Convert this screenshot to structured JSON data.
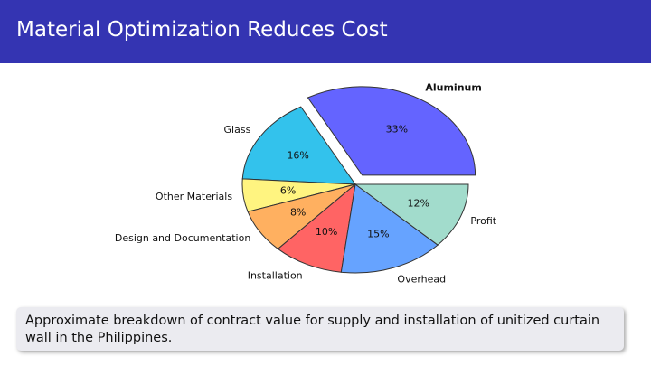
{
  "slide": {
    "title": "Material Optimization Reduces Cost",
    "caption": "Approximate breakdown of contract value for supply and installation of unitized curtain wall in the Philippines."
  },
  "chart_data": {
    "type": "pie",
    "categories": [
      "Aluminum",
      "Glass",
      "Other Materials",
      "Design and Documentation",
      "Installation",
      "Overhead",
      "Profit"
    ],
    "values": [
      33,
      16,
      6,
      8,
      10,
      15,
      12
    ],
    "value_labels": [
      "33%",
      "16%",
      "6%",
      "8%",
      "10%",
      "15%",
      "12%"
    ],
    "colors": [
      "#6464ff",
      "#33c2ec",
      "#fff480",
      "#ffb060",
      "#ff6464",
      "#66a3ff",
      "#a2dccc"
    ],
    "explode": [
      0.12,
      0,
      0,
      0,
      0,
      0,
      0
    ]
  }
}
